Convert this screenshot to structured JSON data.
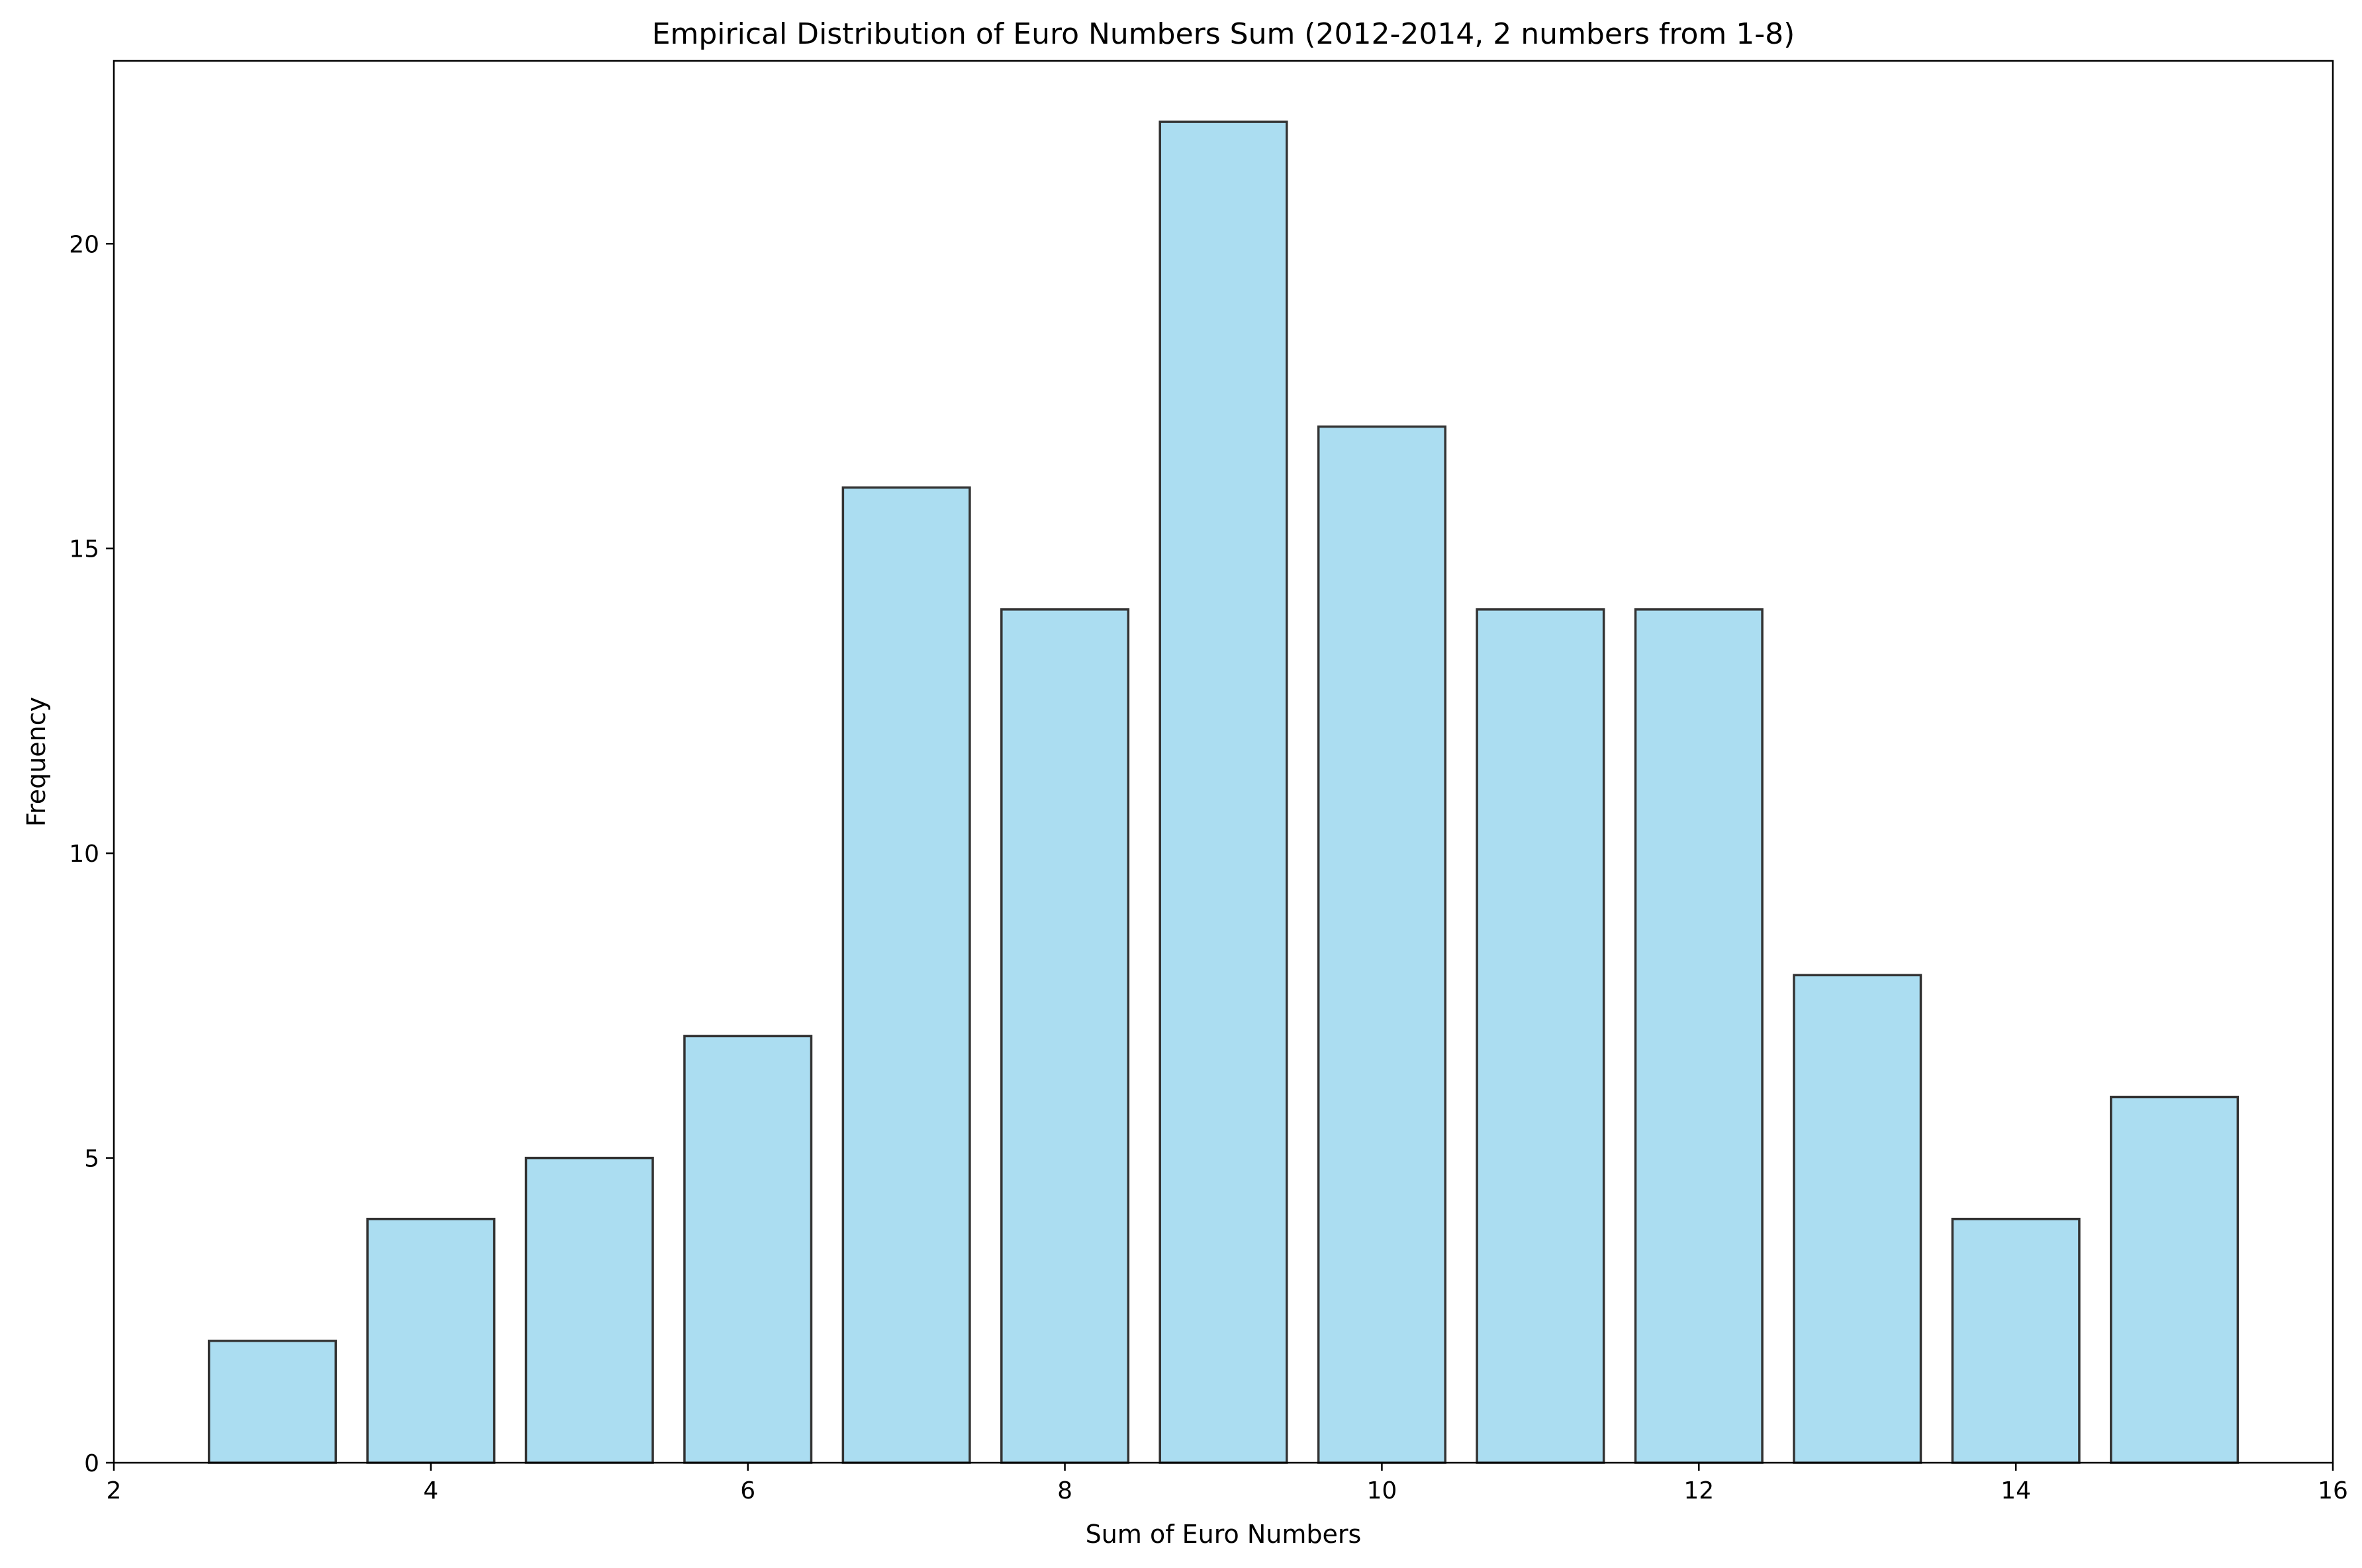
{
  "chart_data": {
    "type": "bar",
    "title": "Empirical Distribution of Euro Numbers Sum (2012-2014, 2 numbers from 1-8)",
    "xlabel": "Sum of Euro Numbers",
    "ylabel": "Frequency",
    "categories": [
      3,
      4,
      5,
      6,
      7,
      8,
      9,
      10,
      11,
      12,
      13,
      14,
      15
    ],
    "values": [
      2,
      4,
      5,
      7,
      16,
      14,
      22,
      17,
      14,
      14,
      8,
      4,
      6
    ],
    "bar_width": 0.8,
    "xlim": [
      2,
      16
    ],
    "ylim": [
      0,
      23
    ],
    "xticks": [
      2,
      4,
      6,
      8,
      10,
      12,
      14,
      16
    ],
    "yticks": [
      0,
      5,
      10,
      15,
      20
    ],
    "grid": false,
    "colors": {
      "bar_fill": "#87ceeb",
      "bar_opacity": 0.7,
      "bar_edge": "#333333"
    }
  }
}
